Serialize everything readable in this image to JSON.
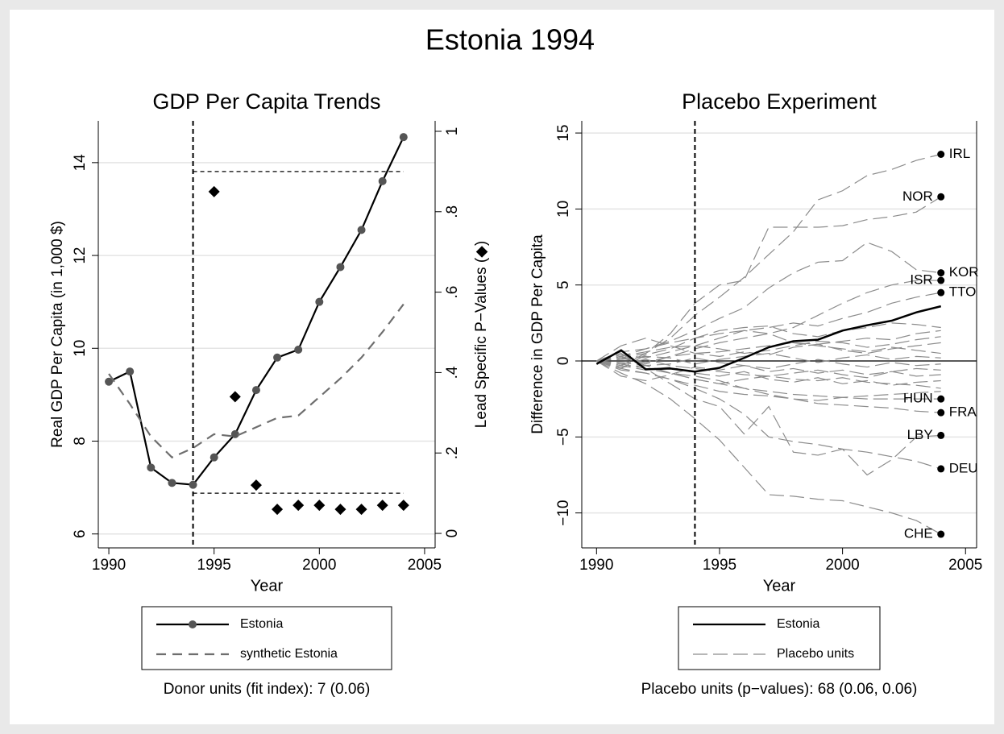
{
  "title": "Estonia 1994",
  "chart_data": [
    {
      "type": "line",
      "title": "GDP Per Capita Trends",
      "xlabel": "Year",
      "ylabel": "Real GDP Per Capita (in 1,000 $)",
      "y2label": "Lead Specific P−Values (◆)",
      "note": "Donor units (fit index): 7 (0.06)",
      "x": [
        1990,
        1991,
        1992,
        1993,
        1994,
        1995,
        1996,
        1997,
        1998,
        1999,
        2000,
        2001,
        2002,
        2003,
        2004
      ],
      "xlim": [
        1989.5,
        2005.5
      ],
      "xticks": [
        1990,
        1995,
        2000,
        2005
      ],
      "ylim": [
        5.7,
        14.9
      ],
      "yticks": [
        6,
        8,
        10,
        12,
        14
      ],
      "y2lim": [
        -0.036,
        1.026
      ],
      "y2ticks": [
        0,
        {
          "value": 0.2,
          "label": ".2"
        },
        {
          "value": 0.4,
          "label": ".4"
        },
        {
          "value": 0.6,
          "label": ".6"
        },
        {
          "value": 0.8,
          "label": ".8"
        },
        1
      ],
      "grid": true,
      "legend": "bottom",
      "xline": 1994,
      "ref_lines": [
        {
          "axis": "y2",
          "value": 0.9,
          "from": 1994,
          "to": 2004
        },
        {
          "axis": "y2",
          "value": 0.1,
          "from": 1994,
          "to": 2004
        }
      ],
      "series": [
        {
          "name": "Estonia",
          "color": "#000000",
          "marker_color": "#555555",
          "marker": "circle",
          "line_style": "solid",
          "values": [
            9.28,
            9.5,
            7.43,
            7.1,
            7.06,
            7.65,
            8.15,
            9.1,
            9.8,
            9.97,
            11.0,
            11.75,
            12.55,
            13.6,
            14.55
          ]
        },
        {
          "name": "synthetic Estonia",
          "color": "#6e6e6e",
          "line_style": "dashed",
          "values": [
            9.45,
            8.8,
            8.1,
            7.65,
            7.85,
            8.15,
            8.1,
            8.3,
            8.5,
            8.55,
            8.95,
            9.35,
            9.8,
            10.35,
            10.95
          ]
        },
        {
          "axis": "y2",
          "color": "#000000",
          "marker": "diamond",
          "line_style": "none",
          "values": [
            null,
            null,
            null,
            null,
            null,
            0.85,
            0.34,
            0.12,
            0.06,
            0.07,
            0.07,
            0.06,
            0.06,
            0.07,
            0.07
          ]
        }
      ]
    },
    {
      "type": "line",
      "title": "Placebo Experiment",
      "xlabel": "Year",
      "ylabel": "Difference in GDP Per Capita",
      "note": "Placebo units (p−values): 68 (0.06, 0.06)",
      "x": [
        1990,
        1991,
        1992,
        1993,
        1994,
        1995,
        1996,
        1997,
        1998,
        1999,
        2000,
        2001,
        2002,
        2003,
        2004
      ],
      "xlim": [
        1989.4,
        2005.45
      ],
      "xticks": [
        1990,
        1995,
        2000,
        2005
      ],
      "ylim": [
        -12.3,
        15.8
      ],
      "yticks": [
        {
          "value": -10,
          "label": "−10"
        },
        {
          "value": -5,
          "label": "−5"
        },
        0,
        5,
        10,
        15
      ],
      "grid": true,
      "legend": "bottom",
      "xline": 1994,
      "yline": 0,
      "series": [
        {
          "name": "Estonia",
          "color": "#000000",
          "line_style": "solid",
          "values": [
            -0.2,
            0.7,
            -0.55,
            -0.5,
            -0.7,
            -0.45,
            0.2,
            0.9,
            1.3,
            1.4,
            2.0,
            2.35,
            2.65,
            3.2,
            3.6
          ]
        },
        {
          "name": "Placebo units",
          "color": "#8c8c8c",
          "line_style": "longdash",
          "lines": [
            {
              "label": "IRL",
              "label_side": "right",
              "values": [
                0,
                0.2,
                0.5,
                1.5,
                3,
                4.2,
                5.5,
                7,
                8.5,
                10.6,
                11.2,
                12.2,
                12.6,
                13.2,
                13.6
              ]
            },
            {
              "label": "NOR",
              "label_side": "left",
              "values": [
                0,
                -0.3,
                0.5,
                1.8,
                3.8,
                5,
                5.3,
                8.8,
                8.8,
                8.8,
                8.9,
                9.3,
                9.5,
                9.8,
                10.8
              ]
            },
            {
              "label": "KOR",
              "label_side": "right",
              "values": [
                0,
                0.3,
                0.8,
                1.3,
                2,
                2.8,
                3.5,
                4.8,
                5.8,
                6.5,
                6.6,
                7.8,
                7.2,
                6,
                5.8
              ]
            },
            {
              "label": "ISR",
              "label_side": "left",
              "values": [
                0,
                0.2,
                -0.2,
                0.3,
                0.8,
                1.2,
                1.5,
                1.8,
                2.2,
                3,
                3.8,
                4.5,
                5,
                5.3,
                5.3
              ]
            },
            {
              "label": "TTO",
              "label_side": "right",
              "values": [
                0,
                -0.5,
                0.4,
                0.8,
                1.5,
                1.8,
                2,
                2.2,
                2.5,
                2.3,
                2.8,
                3.2,
                3.8,
                4.2,
                4.5
              ]
            },
            {
              "label": "HUN",
              "label_side": "left",
              "values": [
                0,
                0.3,
                -0.3,
                -0.8,
                -1.2,
                -1.5,
                -1.8,
                -2,
                -2.2,
                -2.3,
                -2.4,
                -2.5,
                -2.5,
                -2.5,
                -2.5
              ]
            },
            {
              "label": "FRA",
              "label_side": "right",
              "values": [
                0,
                -0.2,
                -0.5,
                -0.8,
                -1,
                -1.3,
                -1.8,
                -2.2,
                -2.5,
                -2.8,
                -2.9,
                -3,
                -3.1,
                -3.3,
                -3.4
              ]
            },
            {
              "label": "LBY",
              "label_side": "left",
              "values": [
                0,
                0.5,
                -0.5,
                -1.5,
                -2.5,
                -3,
                -4.8,
                -3,
                -6,
                -6.2,
                -5.8,
                -7.5,
                -6.5,
                -5,
                -4.9
              ]
            },
            {
              "label": "DEU",
              "label_side": "right",
              "values": [
                0,
                -0.5,
                -0.8,
                -1.2,
                -1.8,
                -2.5,
                -3.5,
                -5,
                -5.3,
                -5.5,
                -5.8,
                -6,
                -6.3,
                -6.6,
                -7.1
              ]
            },
            {
              "label": "CHE",
              "label_side": "left",
              "values": [
                0,
                -0.8,
                -1.5,
                -2.5,
                -3.8,
                -5.2,
                -7,
                -8.8,
                -8.9,
                -9.1,
                -9.2,
                -9.6,
                -10,
                -10.5,
                -11.4
              ]
            },
            {
              "values": [
                0,
                0.2,
                -0.1,
                0.3,
                0.5,
                0.6,
                0.8,
                1,
                1.2,
                1.1,
                1.3,
                1.5,
                1.4,
                1.8,
                2
              ]
            },
            {
              "values": [
                0,
                -0.2,
                0.1,
                -0.3,
                -0.5,
                -0.7,
                -0.9,
                -1,
                -1.2,
                -1.3,
                -1.1,
                -1.4,
                -1.5,
                -1.6,
                -1.8
              ]
            },
            {
              "values": [
                0,
                0.4,
                0.2,
                0.6,
                1,
                1.5,
                2,
                1.8,
                1.2,
                1,
                0.8,
                0.6,
                0.9,
                0.7,
                0.5
              ]
            },
            {
              "values": [
                0,
                -0.4,
                -0.3,
                -0.8,
                -1.2,
                -1.5,
                -1.2,
                -1,
                -0.8,
                -0.6,
                -0.9,
                -1.1,
                -0.7,
                -0.5,
                -0.6
              ]
            },
            {
              "values": [
                0,
                0.1,
                0.3,
                0.2,
                -0.2,
                0.1,
                0.3,
                0.5,
                0.2,
                -0.1,
                0.2,
                0.4,
                0.1,
                0.3,
                0.2
              ]
            },
            {
              "values": [
                0,
                -0.1,
                -0.3,
                -0.2,
                0.2,
                -0.1,
                -0.3,
                -0.5,
                -0.2,
                0.1,
                -0.2,
                -0.4,
                -0.1,
                -0.3,
                -0.2
              ]
            },
            {
              "values": [
                0,
                0.6,
                0.8,
                1.2,
                1.5,
                2,
                2.2,
                2.3,
                1.8,
                1.6,
                2,
                2.2,
                2.5,
                2.4,
                2.2
              ]
            },
            {
              "values": [
                0,
                -0.6,
                -0.8,
                -1.2,
                -1.6,
                -2,
                -2.2,
                -2.3,
                -2.5,
                -2.6,
                -2.4,
                -2.3,
                -2.2,
                -2.1,
                -2
              ]
            },
            {
              "values": [
                0,
                1,
                1.5,
                1,
                0.5,
                0.3,
                0.6,
                0.4,
                0.9,
                1.1,
                0.7,
                0.5,
                0.8,
                1,
                1.2
              ]
            },
            {
              "values": [
                0,
                -1,
                -1.3,
                -0.9,
                -0.4,
                -0.6,
                -0.3,
                -0.7,
                -0.5,
                -0.8,
                -0.6,
                -0.9,
                -0.7,
                -1,
                -0.9
              ]
            },
            {
              "values": [
                0,
                0.3,
                0.6,
                0.9,
                1,
                0.8,
                0.5,
                0.7,
                1,
                1.3,
                1.2,
                0.9,
                1.1,
                1.4,
                1.6
              ]
            },
            {
              "values": [
                0,
                -0.3,
                -0.6,
                -0.4,
                -0.8,
                -1,
                -0.7,
                -1.2,
                -1.4,
                -1.1,
                -1.5,
                -1.3,
                -1.6,
                -1.4,
                -1.3
              ]
            }
          ]
        }
      ]
    }
  ]
}
